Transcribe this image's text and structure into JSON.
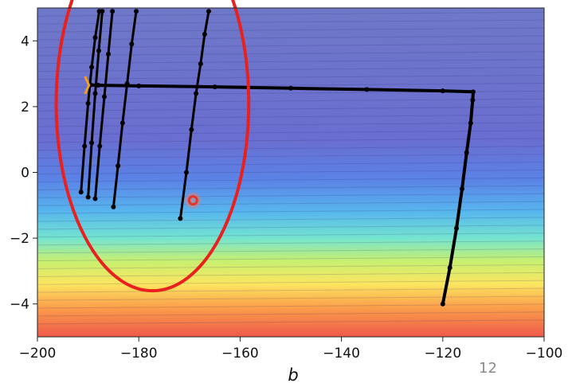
{
  "chart_data": {
    "type": "line",
    "title": "",
    "xlabel": "b",
    "ylabel": "",
    "xlim": [
      -200,
      -100
    ],
    "ylim": [
      -5,
      5
    ],
    "xticks": [
      -200,
      -180,
      -160,
      -140,
      -120,
      -100
    ],
    "yticks": [
      -4,
      -2,
      0,
      2,
      4
    ],
    "grid": false,
    "background": "filled contour; red/orange at low y, blue/purple at high y",
    "series": [
      {
        "x": [
          -120.0,
          -118.6,
          -117.3,
          -116.2,
          -115.3,
          -114.5,
          -114.1,
          -114.0,
          -120.0,
          -135.0,
          -150.0,
          -165.0,
          -180.0,
          -188.0,
          -189.5
        ],
        "y": [
          -4.0,
          -2.9,
          -1.7,
          -0.5,
          0.6,
          1.5,
          2.2,
          2.45,
          2.48,
          2.52,
          2.56,
          2.6,
          2.63,
          2.65,
          2.66
        ]
      },
      {
        "x": [
          -171.8,
          -170.6,
          -169.6,
          -168.7,
          -167.8,
          -167.0,
          -166.2
        ],
        "y": [
          -1.4,
          0.0,
          1.3,
          2.4,
          3.3,
          4.2,
          4.9
        ]
      },
      {
        "x": [
          -185.0,
          -184.1,
          -183.2,
          -182.3,
          -181.4,
          -180.5
        ],
        "y": [
          -1.05,
          0.2,
          1.5,
          2.7,
          3.9,
          4.9
        ]
      },
      {
        "x": [
          -188.6,
          -187.7,
          -186.8,
          -186.0,
          -185.2
        ],
        "y": [
          -0.8,
          0.8,
          2.3,
          3.6,
          4.9
        ]
      },
      {
        "x": [
          -190.0,
          -189.3,
          -188.6,
          -187.9,
          -187.2
        ],
        "y": [
          -0.75,
          0.9,
          2.4,
          3.7,
          4.9
        ]
      },
      {
        "x": [
          -191.4,
          -190.7,
          -190.0,
          -189.3,
          -188.6,
          -187.8
        ],
        "y": [
          -0.6,
          0.8,
          2.1,
          3.2,
          4.1,
          4.9
        ]
      }
    ],
    "markers": {
      "red_circle": {
        "x": -169.3,
        "y": -0.85
      },
      "orange_tick": {
        "x": -190.3,
        "y": 2.65
      }
    },
    "annotation": {
      "shape": "ellipse",
      "color": "#e8211f",
      "center": {
        "x": -177.3,
        "y": 2.1
      },
      "rx": 19.0,
      "ry": 5.7
    },
    "colors": {
      "line": "#000000",
      "ellipse": "#e8211f",
      "marker": "#e83323",
      "orange": "#f0a020"
    }
  },
  "page": {
    "number": "12"
  }
}
